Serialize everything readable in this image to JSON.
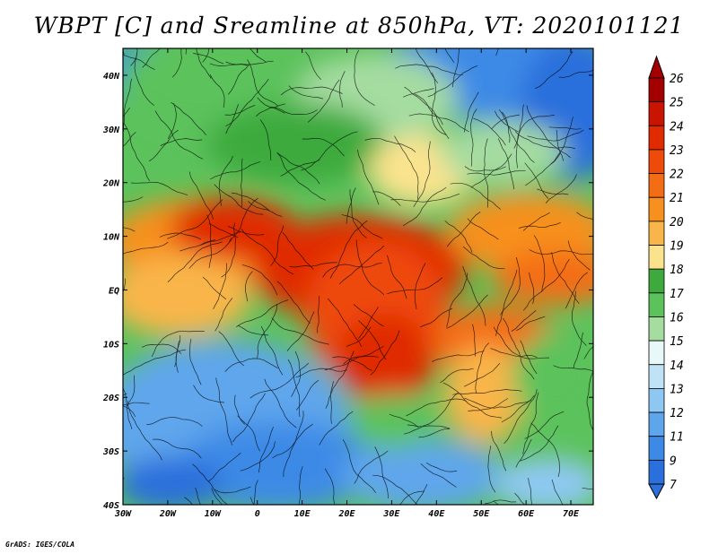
{
  "title": "WBPT [C] and Sreamline at 850hPa, VT: 2020101121",
  "credit": "GrADS: IGES/COLA",
  "map": {
    "lon_labels": [
      "30W",
      "20W",
      "10W",
      "0",
      "10E",
      "20E",
      "30E",
      "40E",
      "50E",
      "60E",
      "70E"
    ],
    "lon_values": [
      -30,
      -20,
      -10,
      0,
      10,
      20,
      30,
      40,
      50,
      60,
      70
    ],
    "lat_labels": [
      "40N",
      "30N",
      "20N",
      "10N",
      "EQ",
      "10S",
      "20S",
      "30S",
      "40S"
    ],
    "lat_values": [
      40,
      30,
      20,
      10,
      0,
      -10,
      -20,
      -30,
      -40
    ],
    "lon_range": [
      -30,
      75
    ],
    "lat_range": [
      -40,
      45
    ]
  },
  "colorbar": {
    "labels": [
      "26",
      "25",
      "24",
      "23",
      "22",
      "21",
      "20",
      "19",
      "18",
      "17",
      "16",
      "15",
      "14",
      "13",
      "12",
      "11",
      "9",
      "7"
    ],
    "colors": [
      "#a50000",
      "#c81400",
      "#e02a00",
      "#ee4a0a",
      "#f46d14",
      "#f7901f",
      "#f9b54a",
      "#fbe38e",
      "#3eaa3e",
      "#5cc25c",
      "#a5dca0",
      "#e8f8f8",
      "#bfe3f5",
      "#8ec8f2",
      "#5ea6ec",
      "#3d8ae6",
      "#2b6fdc"
    ],
    "top_arrow_color": "#a50000",
    "bottom_arrow_color": "#2b6fdc"
  }
}
